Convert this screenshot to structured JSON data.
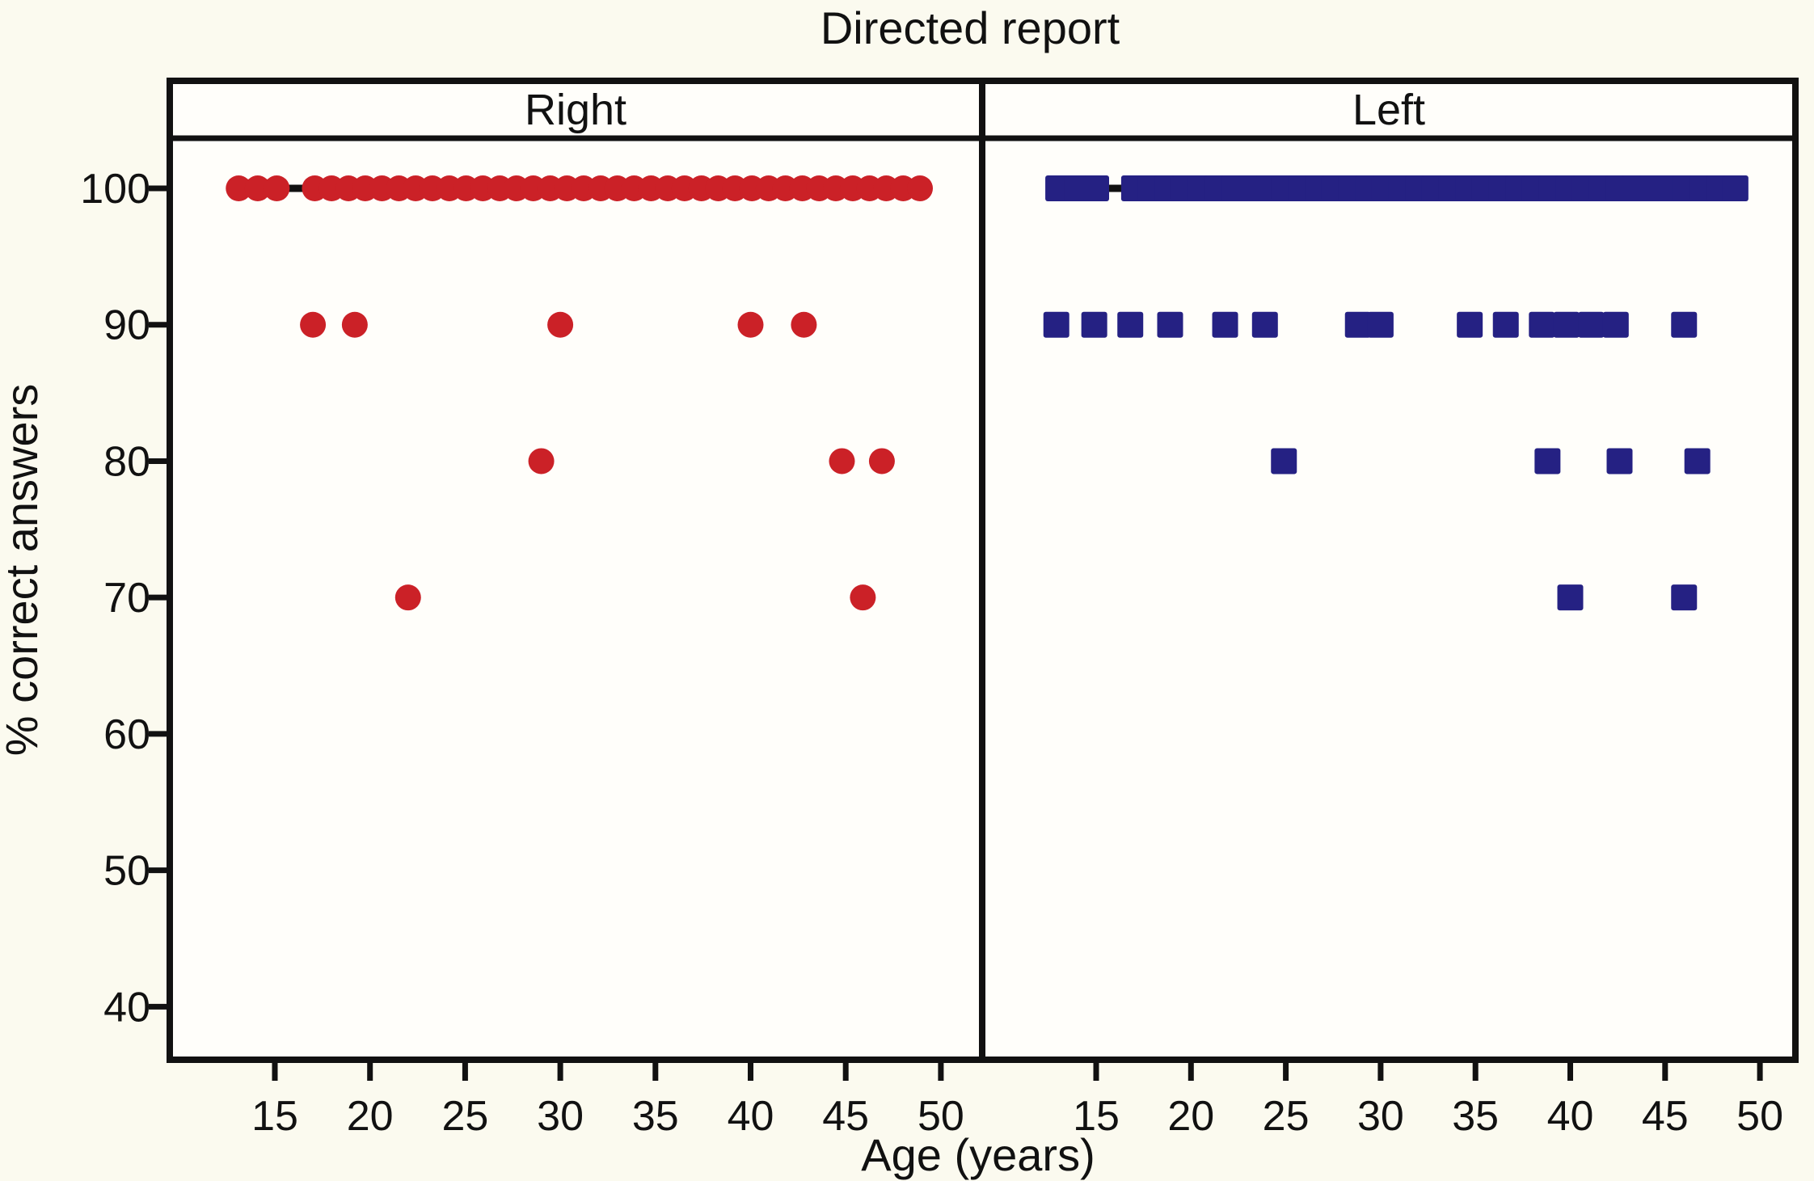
{
  "figure": {
    "title": "Directed report",
    "xlabel": "Age (years)",
    "ylabel": "% correct answers"
  },
  "chart_data": {
    "type": "scatter",
    "title": "Directed report",
    "xlabel": "Age (years)",
    "ylabel": "% correct answers",
    "grid": false,
    "x_ticks": [
      15,
      20,
      25,
      30,
      35,
      40,
      45,
      50
    ],
    "y_ticks": [
      100,
      90,
      80,
      70,
      60,
      50,
      40
    ],
    "x_range": [
      9,
      52
    ],
    "y_range": [
      36,
      104
    ],
    "line_behind_100_row": true,
    "line_color": "#111111",
    "panels": [
      {
        "label": "Right",
        "marker": "circle",
        "color": "#cb2127",
        "groups": [
          {
            "pct": 100,
            "ages": [
              13.1,
              14.1,
              15.1,
              17.1,
              17.98,
              18.87,
              19.75,
              20.63,
              21.52,
              22.4,
              23.28,
              24.17,
              25.05,
              25.93,
              26.82,
              27.7,
              28.58,
              29.47,
              30.35,
              31.23,
              32.12,
              33.0,
              33.88,
              34.77,
              35.65,
              36.53,
              37.42,
              38.3,
              39.18,
              40.07,
              40.95,
              41.83,
              42.72,
              43.6,
              44.48,
              45.37,
              46.25,
              47.13,
              48.02,
              48.9
            ]
          },
          {
            "pct": 90,
            "ages": [
              17.0,
              19.2,
              30.0,
              40.0,
              42.8
            ]
          },
          {
            "pct": 80,
            "ages": [
              29.0,
              44.8,
              46.9
            ]
          },
          {
            "pct": 70,
            "ages": [
              22.0,
              45.9
            ]
          }
        ]
      },
      {
        "label": "Left",
        "marker": "square",
        "color": "#252183",
        "groups": [
          {
            "pct": 100,
            "ages": [
              13.0,
              14.0,
              15.0,
              17.0,
              17.88,
              18.76,
              19.64,
              20.52,
              21.4,
              22.28,
              23.17,
              24.05,
              24.93,
              25.81,
              26.69,
              27.57,
              28.45,
              29.33,
              30.21,
              31.09,
              31.97,
              32.85,
              33.73,
              34.61,
              35.5,
              36.38,
              37.26,
              38.14,
              39.02,
              39.9,
              40.78,
              41.66,
              42.54,
              43.42,
              44.3,
              45.18,
              46.06,
              46.95,
              47.83,
              48.71
            ]
          },
          {
            "pct": 90,
            "ages": [
              12.9,
              14.9,
              16.8,
              18.9,
              21.8,
              23.9,
              28.8,
              30.0,
              34.7,
              36.6,
              38.5,
              39.8,
              41.1,
              42.4,
              46.0
            ]
          },
          {
            "pct": 80,
            "ages": [
              24.9,
              38.8,
              42.6,
              46.7
            ]
          },
          {
            "pct": 70,
            "ages": [
              40.0,
              46.0
            ]
          }
        ]
      }
    ]
  }
}
